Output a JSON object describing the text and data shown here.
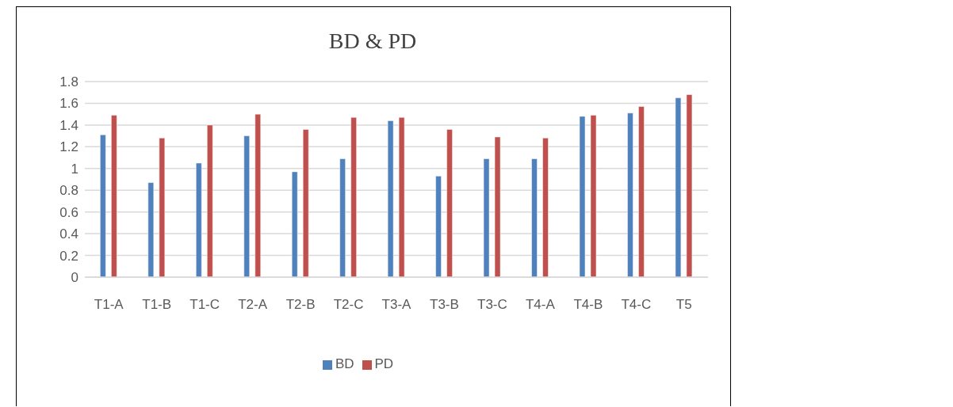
{
  "chart_data": {
    "type": "bar",
    "title": "BD & PD",
    "categories": [
      "T1-A",
      "T1-B",
      "T1-C",
      "T2-A",
      "T2-B",
      "T2-C",
      "T3-A",
      "T3-B",
      "T3-C",
      "T4-A",
      "T4-B",
      "T4-C",
      "T5"
    ],
    "series": [
      {
        "name": "BD",
        "color": "#4f81bd",
        "values": [
          1.31,
          0.87,
          1.05,
          1.3,
          0.97,
          1.09,
          1.44,
          0.93,
          1.09,
          1.09,
          1.48,
          1.51,
          1.65
        ]
      },
      {
        "name": "PD",
        "color": "#c0504d",
        "values": [
          1.49,
          1.28,
          1.4,
          1.5,
          1.36,
          1.47,
          1.47,
          1.36,
          1.29,
          1.28,
          1.49,
          1.57,
          1.68
        ]
      }
    ],
    "ylim": [
      0,
      1.8
    ],
    "yticks": [
      0,
      0.2,
      0.4,
      0.6,
      0.8,
      1,
      1.2,
      1.4,
      1.6,
      1.8
    ],
    "grid": "y",
    "legend": "bottom"
  }
}
